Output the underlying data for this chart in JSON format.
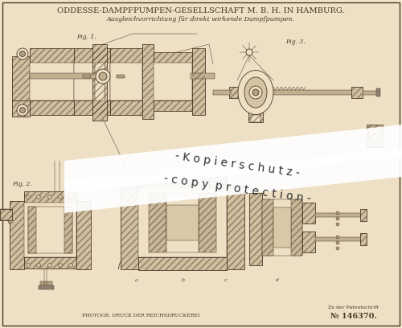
{
  "bg_color": "#f0e4cc",
  "paper_color": "#ede0c4",
  "line_color": "#4a3828",
  "hatch_color": "#8a7860",
  "title_text": "ODDESSE-DAMPFPUMPEN-GESELLSCHAFT M. B. H. IN HAMBURG.",
  "subtitle_text": "Ausgleichvorrichtung für direkt wirkende Dampfpumpen.",
  "bottom_left_text": "PHOTOGR. DRUCK DER REICHSDRUCKEREI",
  "bottom_right_line1": "Zu der Patentschrift",
  "bottom_right_line2": "№ 146370.",
  "watermark_line1": "- K o p i e r s c h u t z -",
  "watermark_line2": "- c o p y  p r o t e c t i o n -",
  "fig_label1": "Fig. 1.",
  "fig_label2": "Fig. 2.",
  "fig_label3": "Fig. 3."
}
